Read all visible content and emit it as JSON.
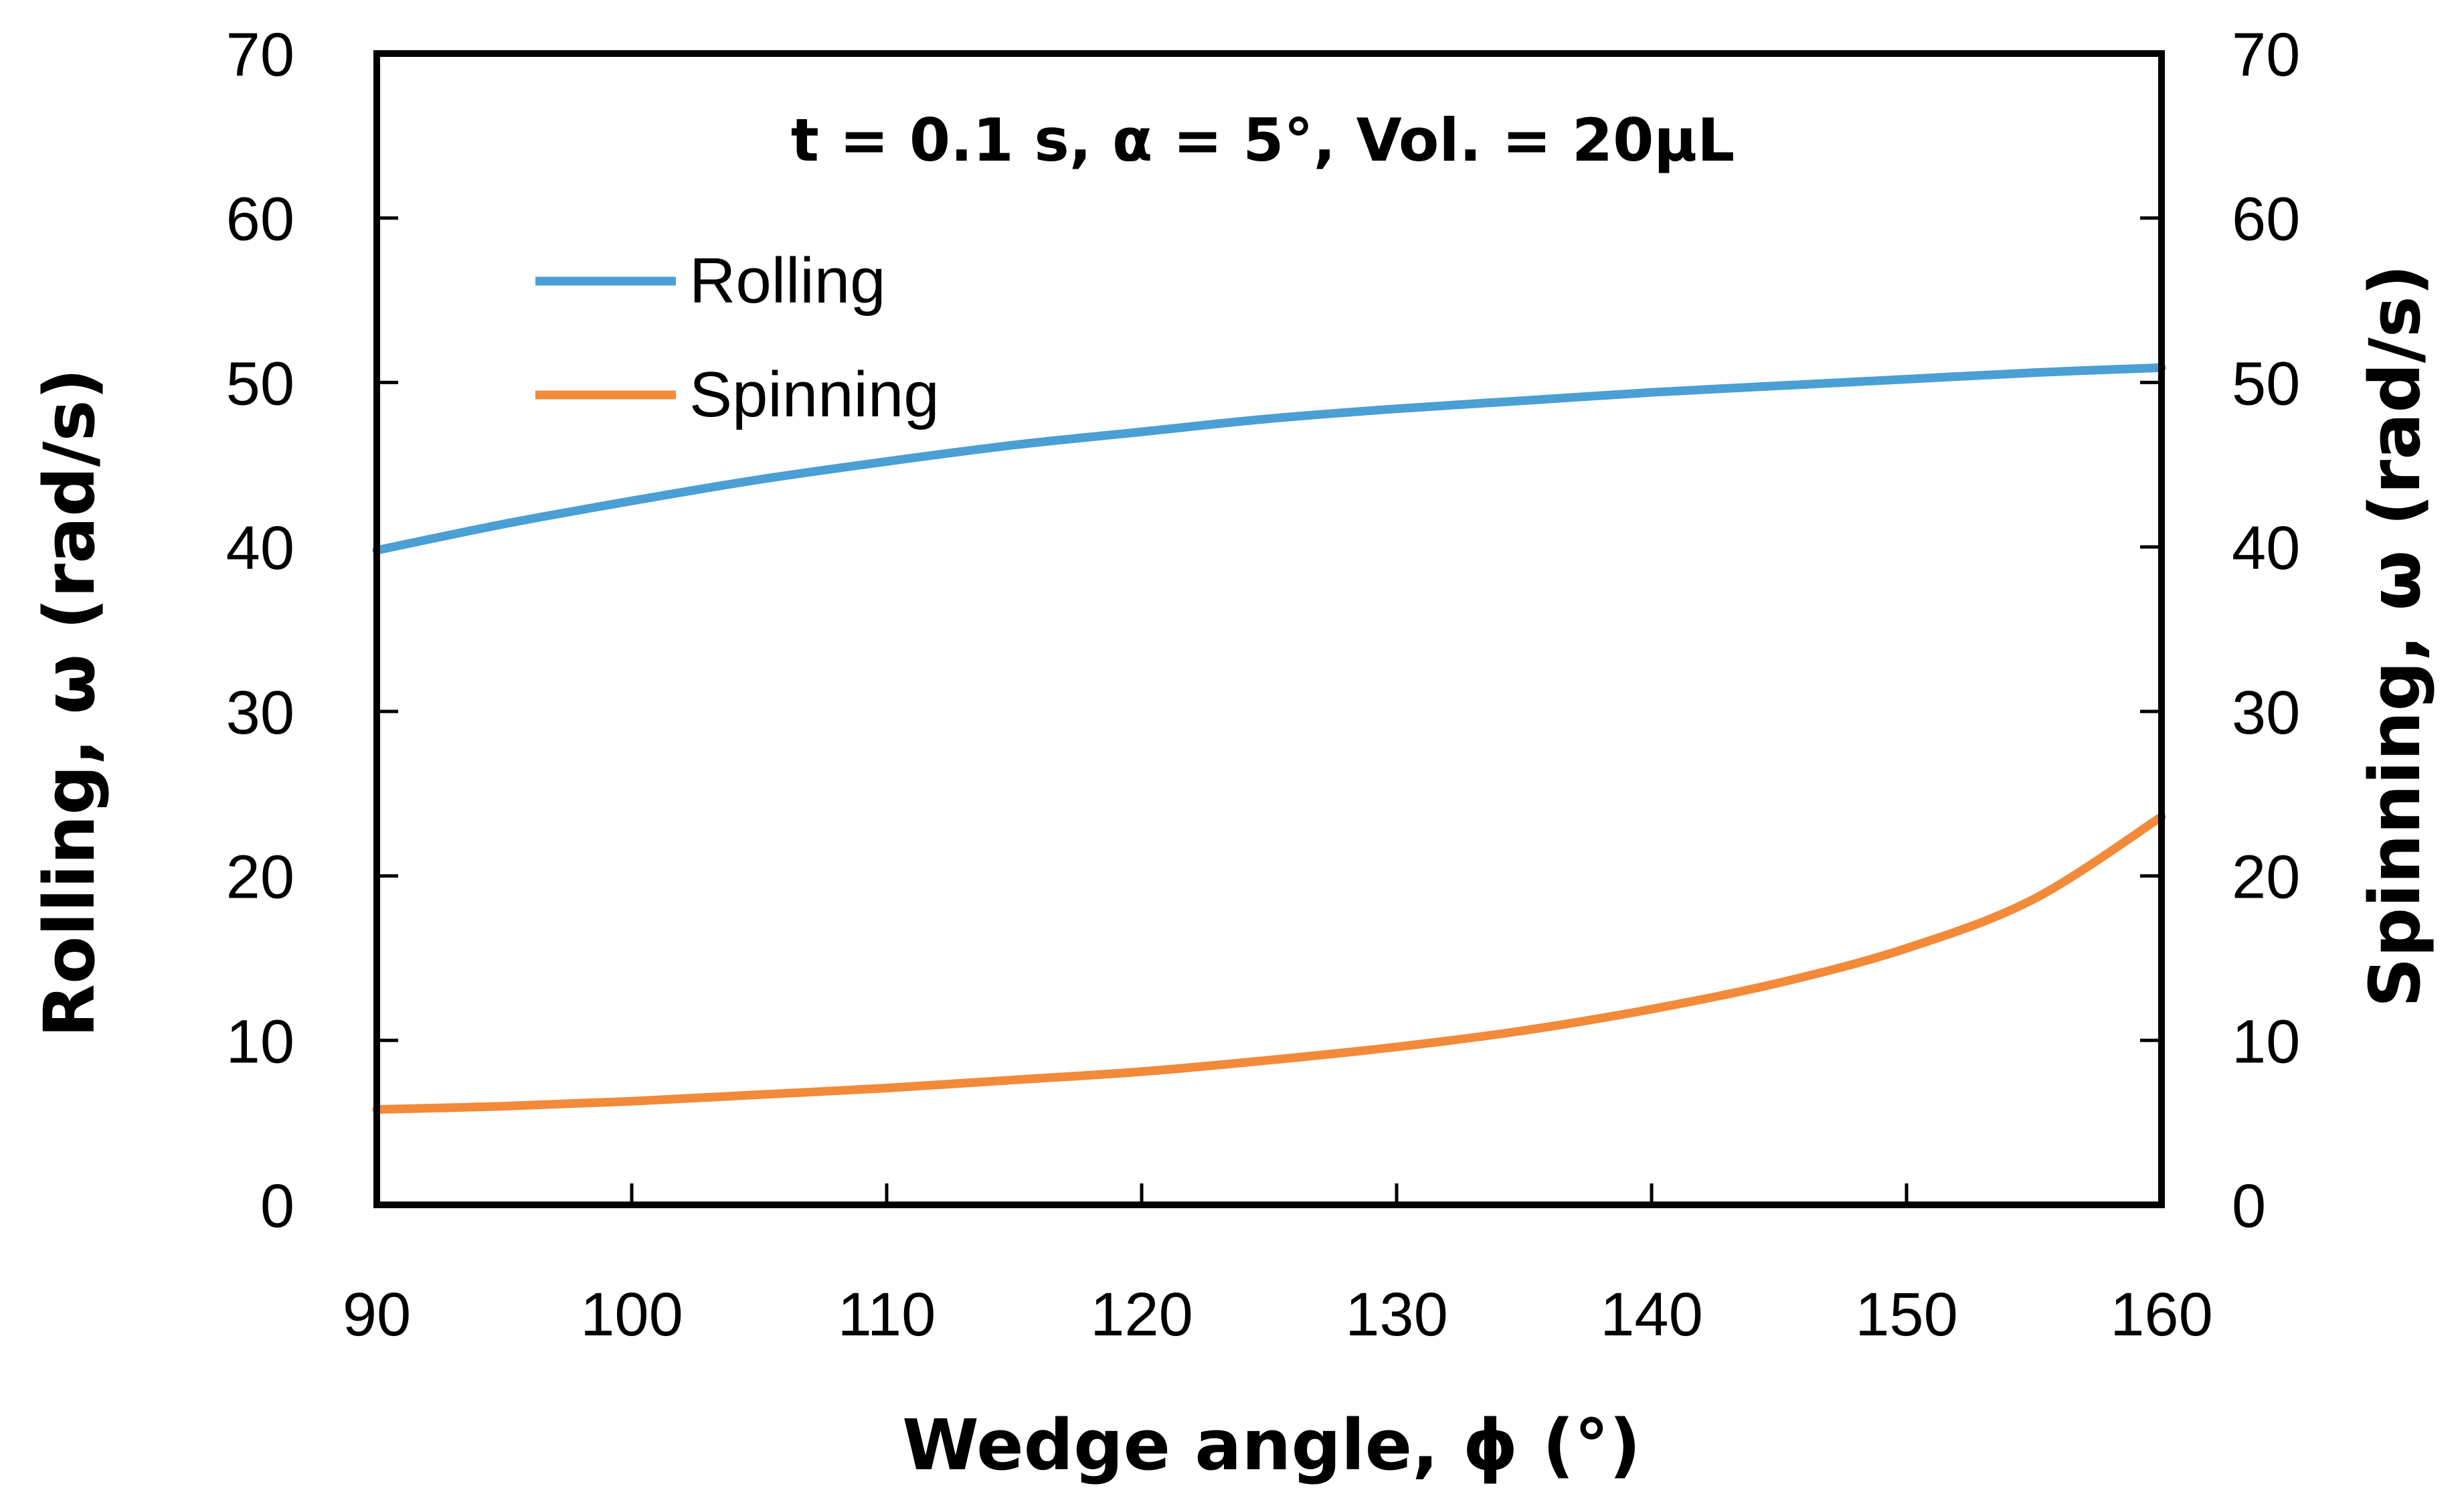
{
  "chart_data": {
    "type": "line",
    "annotation": "t = 0.1 s, α  = 5°, Vol. = 20μL",
    "xlabel": "Wedge angle, ϕ (°)",
    "ylabel_left": "Rolling, ω (rad/s)",
    "ylabel_right": "Spinning, ω (rad/s)",
    "xlim": [
      90,
      160
    ],
    "ylim": [
      0,
      70
    ],
    "xticks": [
      "90",
      "100",
      "110",
      "120",
      "130",
      "140",
      "150",
      "160"
    ],
    "yticks": [
      "0",
      "10",
      "20",
      "30",
      "40",
      "50",
      "60",
      "70"
    ],
    "grid": false,
    "legend_position": "top-left",
    "x": [
      90,
      95,
      100,
      105,
      110,
      115,
      120,
      125,
      130,
      135,
      140,
      145,
      150,
      155,
      160
    ],
    "series": [
      {
        "name": "Rolling",
        "color": "#4A9FD4",
        "values": [
          39.8,
          41.4,
          42.8,
          44.1,
          45.2,
          46.2,
          47.0,
          47.8,
          48.4,
          48.9,
          49.4,
          49.8,
          50.2,
          50.6,
          50.9
        ]
      },
      {
        "name": "Spinning",
        "color": "#F28A3A",
        "values": [
          5.8,
          6.0,
          6.3,
          6.7,
          7.1,
          7.6,
          8.1,
          8.8,
          9.6,
          10.6,
          11.9,
          13.5,
          15.6,
          18.6,
          23.6
        ]
      }
    ]
  }
}
